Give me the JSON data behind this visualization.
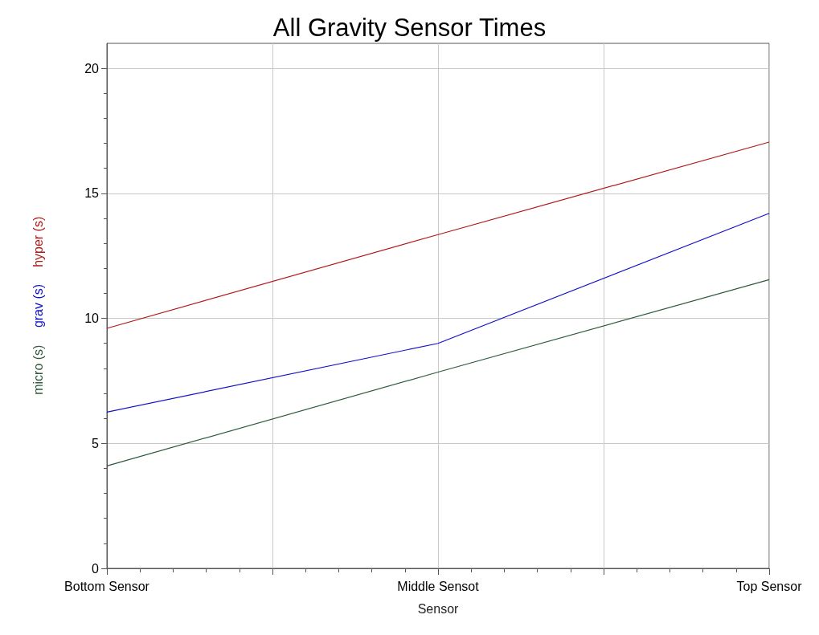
{
  "chart_data": {
    "type": "line",
    "title": "All Gravity Sensor Times",
    "xlabel": "Sensor",
    "categories": [
      "Bottom Sensor",
      "Middle Sensot",
      "Top Sensor"
    ],
    "series": [
      {
        "name": "micro (s)",
        "color": "#2f5a3c",
        "values": [
          4.1,
          7.85,
          11.55
        ]
      },
      {
        "name": "grav (s)",
        "color": "#1010c8",
        "values": [
          6.25,
          9.0,
          14.2
        ]
      },
      {
        "name": "hyper (s)",
        "color": "#b01818",
        "values": [
          9.6,
          13.35,
          17.05
        ]
      }
    ],
    "ylim": [
      0,
      21
    ],
    "yticks": [
      0,
      5,
      10,
      15,
      20
    ],
    "grid": true,
    "legend": false,
    "marker": "none",
    "line_style": "solid"
  }
}
